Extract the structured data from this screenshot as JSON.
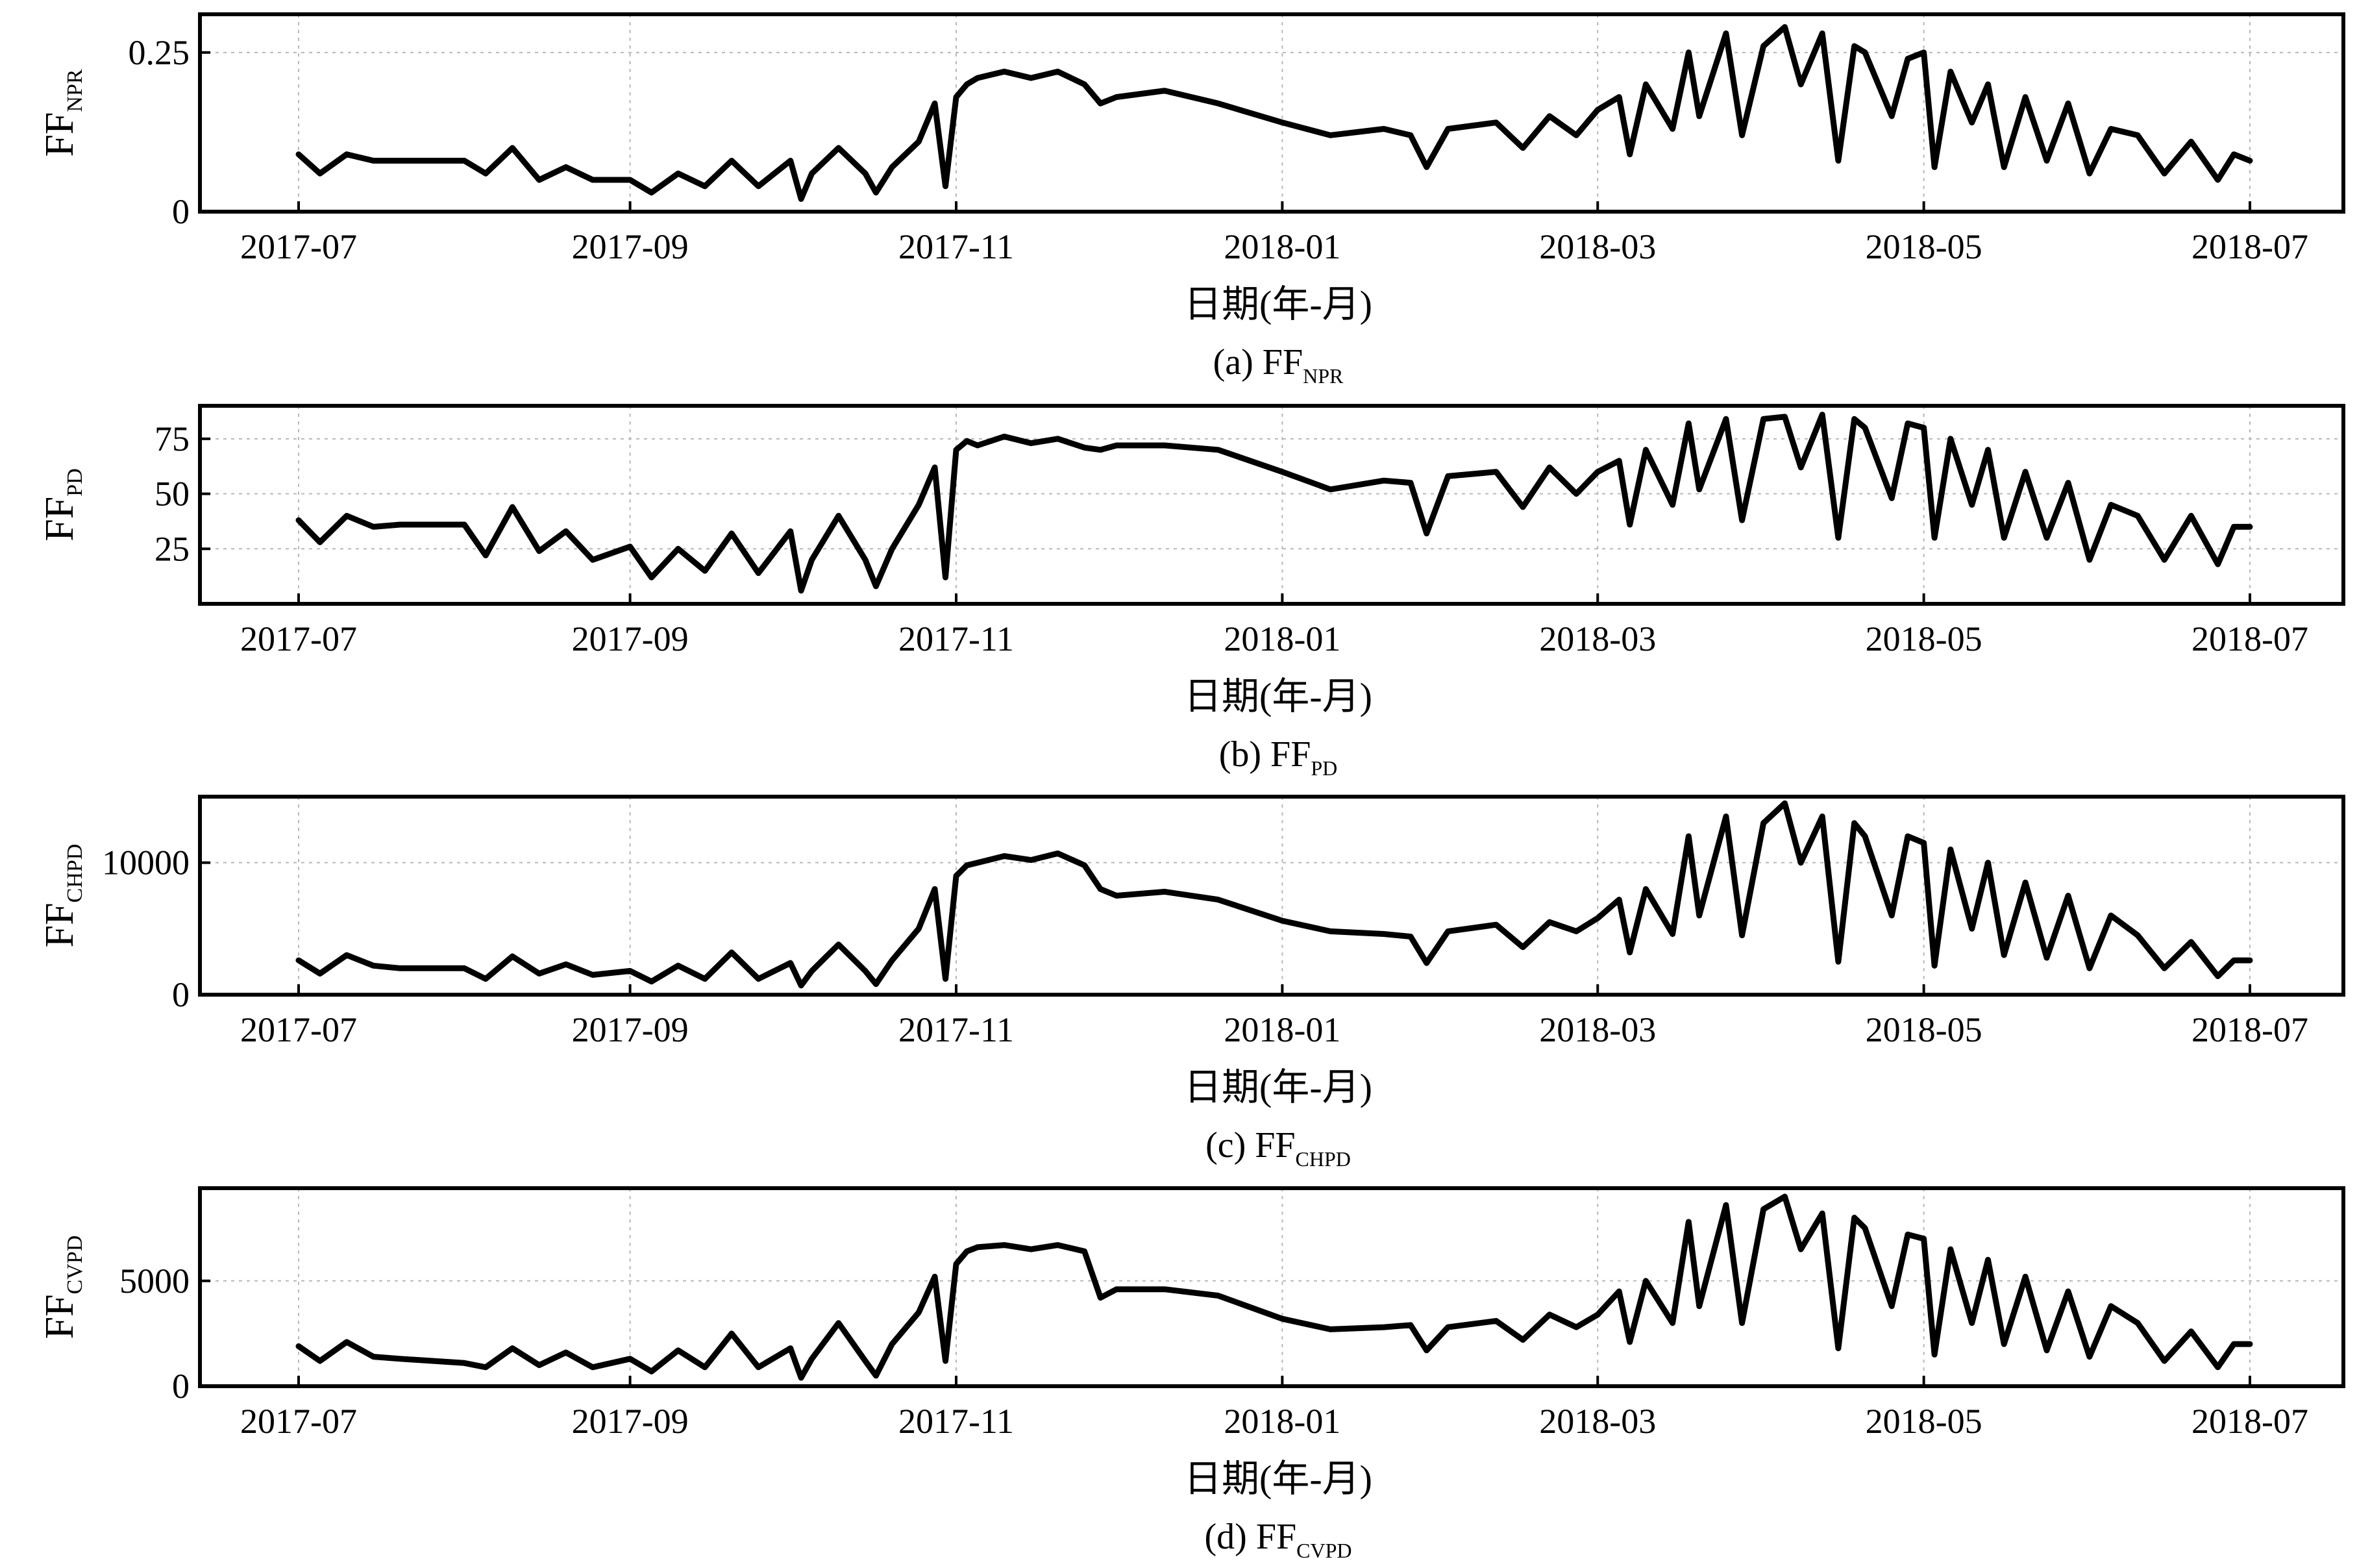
{
  "chart_data": [
    {
      "type": "line",
      "ylabel": "FF",
      "ylabel_sub": "NPR",
      "caption": "(a) FF",
      "caption_sub": "NPR",
      "xlabel": "日期(年-月)",
      "xlim": [
        "2017-07-01",
        "2018-07-01"
      ],
      "ylim": [
        0,
        0.31
      ],
      "yticks": [
        0,
        0.25
      ],
      "ytick_labels": [
        "0",
        "0.25"
      ],
      "xticks": [
        "2017-07-01",
        "2017-09-01",
        "2017-11-01",
        "2018-01-01",
        "2018-03-01",
        "2018-05-01",
        "2018-07-01"
      ],
      "xtick_labels": [
        "2017-07",
        "2017-09",
        "2017-11",
        "2018-01",
        "2018-03",
        "2018-05",
        "2018-07"
      ],
      "grid": true,
      "series": [
        {
          "color": "#000000",
          "x": [
            "2017-07-01",
            "2017-07-05",
            "2017-07-10",
            "2017-07-15",
            "2017-07-20",
            "2017-08-01",
            "2017-08-05",
            "2017-08-10",
            "2017-08-15",
            "2017-08-20",
            "2017-08-25",
            "2017-09-01",
            "2017-09-05",
            "2017-09-10",
            "2017-09-15",
            "2017-09-20",
            "2017-09-25",
            "2017-10-01",
            "2017-10-03",
            "2017-10-05",
            "2017-10-10",
            "2017-10-15",
            "2017-10-17",
            "2017-10-20",
            "2017-10-25",
            "2017-10-28",
            "2017-10-30",
            "2017-11-01",
            "2017-11-03",
            "2017-11-05",
            "2017-11-10",
            "2017-11-15",
            "2017-11-20",
            "2017-11-25",
            "2017-11-28",
            "2017-12-01",
            "2017-12-10",
            "2017-12-20",
            "2018-01-01",
            "2018-01-10",
            "2018-01-20",
            "2018-01-25",
            "2018-01-28",
            "2018-02-01",
            "2018-02-10",
            "2018-02-15",
            "2018-02-20",
            "2018-02-25",
            "2018-03-01",
            "2018-03-05",
            "2018-03-07",
            "2018-03-10",
            "2018-03-15",
            "2018-03-18",
            "2018-03-20",
            "2018-03-25",
            "2018-03-28",
            "2018-04-01",
            "2018-04-05",
            "2018-04-08",
            "2018-04-12",
            "2018-04-15",
            "2018-04-18",
            "2018-04-20",
            "2018-04-25",
            "2018-04-28",
            "2018-05-01",
            "2018-05-03",
            "2018-05-06",
            "2018-05-10",
            "2018-05-13",
            "2018-05-16",
            "2018-05-20",
            "2018-05-24",
            "2018-05-28",
            "2018-06-01",
            "2018-06-05",
            "2018-06-10",
            "2018-06-15",
            "2018-06-20",
            "2018-06-25",
            "2018-06-28",
            "2018-07-01"
          ],
          "y": [
            0.09,
            0.06,
            0.09,
            0.08,
            0.08,
            0.08,
            0.06,
            0.1,
            0.05,
            0.07,
            0.05,
            0.05,
            0.03,
            0.06,
            0.04,
            0.08,
            0.04,
            0.08,
            0.02,
            0.06,
            0.1,
            0.06,
            0.03,
            0.07,
            0.11,
            0.17,
            0.04,
            0.18,
            0.2,
            0.21,
            0.22,
            0.21,
            0.22,
            0.2,
            0.17,
            0.18,
            0.19,
            0.17,
            0.14,
            0.12,
            0.13,
            0.12,
            0.07,
            0.13,
            0.14,
            0.1,
            0.15,
            0.12,
            0.16,
            0.18,
            0.09,
            0.2,
            0.13,
            0.25,
            0.15,
            0.28,
            0.12,
            0.26,
            0.29,
            0.2,
            0.28,
            0.08,
            0.26,
            0.25,
            0.15,
            0.24,
            0.25,
            0.07,
            0.22,
            0.14,
            0.2,
            0.07,
            0.18,
            0.08,
            0.17,
            0.06,
            0.13,
            0.12,
            0.06,
            0.11,
            0.05,
            0.09,
            0.08
          ]
        }
      ]
    },
    {
      "type": "line",
      "ylabel": "FF",
      "ylabel_sub": "PD",
      "caption": "(b) FF",
      "caption_sub": "PD",
      "xlabel": "日期(年-月)",
      "xlim": [
        "2017-07-01",
        "2018-07-01"
      ],
      "ylim": [
        0,
        90
      ],
      "yticks": [
        25,
        50,
        75
      ],
      "ytick_labels": [
        "25",
        "50",
        "75"
      ],
      "xticks": [
        "2017-07-01",
        "2017-09-01",
        "2017-11-01",
        "2018-01-01",
        "2018-03-01",
        "2018-05-01",
        "2018-07-01"
      ],
      "xtick_labels": [
        "2017-07",
        "2017-09",
        "2017-11",
        "2018-01",
        "2018-03",
        "2018-05",
        "2018-07"
      ],
      "grid": true,
      "series": [
        {
          "color": "#000000",
          "x": [
            "2017-07-01",
            "2017-07-05",
            "2017-07-10",
            "2017-07-15",
            "2017-07-20",
            "2017-08-01",
            "2017-08-05",
            "2017-08-10",
            "2017-08-15",
            "2017-08-20",
            "2017-08-25",
            "2017-09-01",
            "2017-09-05",
            "2017-09-10",
            "2017-09-15",
            "2017-09-20",
            "2017-09-25",
            "2017-10-01",
            "2017-10-03",
            "2017-10-05",
            "2017-10-10",
            "2017-10-15",
            "2017-10-17",
            "2017-10-20",
            "2017-10-25",
            "2017-10-28",
            "2017-10-30",
            "2017-11-01",
            "2017-11-03",
            "2017-11-05",
            "2017-11-10",
            "2017-11-15",
            "2017-11-20",
            "2017-11-25",
            "2017-11-28",
            "2017-12-01",
            "2017-12-10",
            "2017-12-20",
            "2018-01-01",
            "2018-01-10",
            "2018-01-20",
            "2018-01-25",
            "2018-01-28",
            "2018-02-01",
            "2018-02-10",
            "2018-02-15",
            "2018-02-20",
            "2018-02-25",
            "2018-03-01",
            "2018-03-05",
            "2018-03-07",
            "2018-03-10",
            "2018-03-15",
            "2018-03-18",
            "2018-03-20",
            "2018-03-25",
            "2018-03-28",
            "2018-04-01",
            "2018-04-05",
            "2018-04-08",
            "2018-04-12",
            "2018-04-15",
            "2018-04-18",
            "2018-04-20",
            "2018-04-25",
            "2018-04-28",
            "2018-05-01",
            "2018-05-03",
            "2018-05-06",
            "2018-05-10",
            "2018-05-13",
            "2018-05-16",
            "2018-05-20",
            "2018-05-24",
            "2018-05-28",
            "2018-06-01",
            "2018-06-05",
            "2018-06-10",
            "2018-06-15",
            "2018-06-20",
            "2018-06-25",
            "2018-06-28",
            "2018-07-01"
          ],
          "y": [
            38,
            28,
            40,
            35,
            36,
            36,
            22,
            44,
            24,
            33,
            20,
            26,
            12,
            25,
            15,
            32,
            14,
            33,
            6,
            20,
            40,
            20,
            8,
            25,
            45,
            62,
            12,
            70,
            74,
            72,
            76,
            73,
            75,
            71,
            70,
            72,
            72,
            70,
            60,
            52,
            56,
            55,
            32,
            58,
            60,
            44,
            62,
            50,
            60,
            65,
            36,
            70,
            45,
            82,
            52,
            84,
            38,
            84,
            85,
            62,
            86,
            30,
            84,
            80,
            48,
            82,
            80,
            30,
            75,
            45,
            70,
            30,
            60,
            30,
            55,
            20,
            45,
            40,
            20,
            40,
            18,
            35,
            35
          ]
        }
      ]
    },
    {
      "type": "line",
      "ylabel": "FF",
      "ylabel_sub": "CHPD",
      "caption": "(c) FF",
      "caption_sub": "CHPD",
      "xlabel": "日期(年-月)",
      "xlim": [
        "2017-07-01",
        "2018-07-01"
      ],
      "ylim": [
        0,
        15000
      ],
      "yticks": [
        0,
        10000
      ],
      "ytick_labels": [
        "0",
        "10000"
      ],
      "xticks": [
        "2017-07-01",
        "2017-09-01",
        "2017-11-01",
        "2018-01-01",
        "2018-03-01",
        "2018-05-01",
        "2018-07-01"
      ],
      "xtick_labels": [
        "2017-07",
        "2017-09",
        "2017-11",
        "2018-01",
        "2018-03",
        "2018-05",
        "2018-07"
      ],
      "grid": true,
      "series": [
        {
          "color": "#000000",
          "x": [
            "2017-07-01",
            "2017-07-05",
            "2017-07-10",
            "2017-07-15",
            "2017-07-20",
            "2017-08-01",
            "2017-08-05",
            "2017-08-10",
            "2017-08-15",
            "2017-08-20",
            "2017-08-25",
            "2017-09-01",
            "2017-09-05",
            "2017-09-10",
            "2017-09-15",
            "2017-09-20",
            "2017-09-25",
            "2017-10-01",
            "2017-10-03",
            "2017-10-05",
            "2017-10-10",
            "2017-10-15",
            "2017-10-17",
            "2017-10-20",
            "2017-10-25",
            "2017-10-28",
            "2017-10-30",
            "2017-11-01",
            "2017-11-03",
            "2017-11-05",
            "2017-11-10",
            "2017-11-15",
            "2017-11-20",
            "2017-11-25",
            "2017-11-28",
            "2017-12-01",
            "2017-12-10",
            "2017-12-20",
            "2018-01-01",
            "2018-01-10",
            "2018-01-20",
            "2018-01-25",
            "2018-01-28",
            "2018-02-01",
            "2018-02-10",
            "2018-02-15",
            "2018-02-20",
            "2018-02-25",
            "2018-03-01",
            "2018-03-05",
            "2018-03-07",
            "2018-03-10",
            "2018-03-15",
            "2018-03-18",
            "2018-03-20",
            "2018-03-25",
            "2018-03-28",
            "2018-04-01",
            "2018-04-05",
            "2018-04-08",
            "2018-04-12",
            "2018-04-15",
            "2018-04-18",
            "2018-04-20",
            "2018-04-25",
            "2018-04-28",
            "2018-05-01",
            "2018-05-03",
            "2018-05-06",
            "2018-05-10",
            "2018-05-13",
            "2018-05-16",
            "2018-05-20",
            "2018-05-24",
            "2018-05-28",
            "2018-06-01",
            "2018-06-05",
            "2018-06-10",
            "2018-06-15",
            "2018-06-20",
            "2018-06-25",
            "2018-06-28",
            "2018-07-01"
          ],
          "y": [
            2600,
            1600,
            3000,
            2200,
            2000,
            2000,
            1200,
            2900,
            1600,
            2300,
            1500,
            1800,
            1000,
            2200,
            1200,
            3200,
            1200,
            2400,
            700,
            1800,
            3800,
            1800,
            800,
            2600,
            5000,
            8000,
            1200,
            9000,
            9800,
            10000,
            10500,
            10200,
            10700,
            9800,
            8000,
            7500,
            7800,
            7200,
            5600,
            4800,
            4600,
            4400,
            2400,
            4800,
            5300,
            3600,
            5500,
            4800,
            5800,
            7200,
            3200,
            8000,
            4600,
            12000,
            6000,
            13500,
            4500,
            13000,
            14500,
            10000,
            13500,
            2500,
            13000,
            12000,
            6000,
            12000,
            11500,
            2200,
            11000,
            5000,
            10000,
            3000,
            8500,
            2800,
            7500,
            2000,
            6000,
            4500,
            2000,
            4000,
            1400,
            2600,
            2600
          ]
        }
      ]
    },
    {
      "type": "line",
      "ylabel": "FF",
      "ylabel_sub": "CVPD",
      "caption": "(d) FF",
      "caption_sub": "CVPD",
      "xlabel": "日期(年-月)",
      "xlim": [
        "2017-07-01",
        "2018-07-01"
      ],
      "ylim": [
        0,
        9400
      ],
      "yticks": [
        0,
        5000
      ],
      "ytick_labels": [
        "0",
        "5000"
      ],
      "xticks": [
        "2017-07-01",
        "2017-09-01",
        "2017-11-01",
        "2018-01-01",
        "2018-03-01",
        "2018-05-01",
        "2018-07-01"
      ],
      "xtick_labels": [
        "2017-07",
        "2017-09",
        "2017-11",
        "2018-01",
        "2018-03",
        "2018-05",
        "2018-07"
      ],
      "grid": true,
      "series": [
        {
          "color": "#000000",
          "x": [
            "2017-07-01",
            "2017-07-05",
            "2017-07-10",
            "2017-07-15",
            "2017-07-20",
            "2017-08-01",
            "2017-08-05",
            "2017-08-10",
            "2017-08-15",
            "2017-08-20",
            "2017-08-25",
            "2017-09-01",
            "2017-09-05",
            "2017-09-10",
            "2017-09-15",
            "2017-09-20",
            "2017-09-25",
            "2017-10-01",
            "2017-10-03",
            "2017-10-05",
            "2017-10-10",
            "2017-10-15",
            "2017-10-17",
            "2017-10-20",
            "2017-10-25",
            "2017-10-28",
            "2017-10-30",
            "2017-11-01",
            "2017-11-03",
            "2017-11-05",
            "2017-11-10",
            "2017-11-15",
            "2017-11-20",
            "2017-11-25",
            "2017-11-28",
            "2017-12-01",
            "2017-12-10",
            "2017-12-20",
            "2018-01-01",
            "2018-01-10",
            "2018-01-20",
            "2018-01-25",
            "2018-01-28",
            "2018-02-01",
            "2018-02-10",
            "2018-02-15",
            "2018-02-20",
            "2018-02-25",
            "2018-03-01",
            "2018-03-05",
            "2018-03-07",
            "2018-03-10",
            "2018-03-15",
            "2018-03-18",
            "2018-03-20",
            "2018-03-25",
            "2018-03-28",
            "2018-04-01",
            "2018-04-05",
            "2018-04-08",
            "2018-04-12",
            "2018-04-15",
            "2018-04-18",
            "2018-04-20",
            "2018-04-25",
            "2018-04-28",
            "2018-05-01",
            "2018-05-03",
            "2018-05-06",
            "2018-05-10",
            "2018-05-13",
            "2018-05-16",
            "2018-05-20",
            "2018-05-24",
            "2018-05-28",
            "2018-06-01",
            "2018-06-05",
            "2018-06-10",
            "2018-06-15",
            "2018-06-20",
            "2018-06-25",
            "2018-06-28",
            "2018-07-01"
          ],
          "y": [
            1900,
            1200,
            2100,
            1400,
            1300,
            1100,
            900,
            1800,
            1000,
            1600,
            900,
            1300,
            700,
            1700,
            900,
            2500,
            900,
            1800,
            400,
            1300,
            3000,
            1200,
            500,
            2000,
            3500,
            5200,
            1200,
            5800,
            6400,
            6600,
            6700,
            6500,
            6700,
            6400,
            4200,
            4600,
            4600,
            4300,
            3200,
            2700,
            2800,
            2900,
            1700,
            2800,
            3100,
            2200,
            3400,
            2800,
            3400,
            4500,
            2100,
            5000,
            3000,
            7800,
            3800,
            8600,
            3000,
            8400,
            9000,
            6500,
            8200,
            1800,
            8000,
            7500,
            3800,
            7200,
            7000,
            1500,
            6500,
            3000,
            6000,
            2000,
            5200,
            1700,
            4500,
            1400,
            3800,
            3000,
            1200,
            2600,
            900,
            2000,
            2000
          ]
        }
      ]
    }
  ]
}
